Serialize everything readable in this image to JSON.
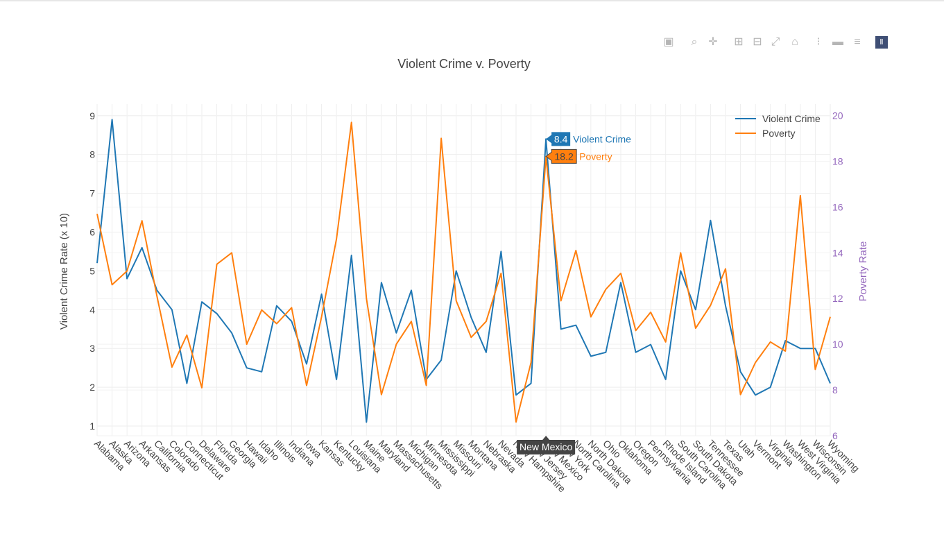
{
  "modebar": {
    "buttons": [
      "camera-icon",
      "zoom-icon",
      "pan-icon",
      "zoom-in-icon",
      "zoom-out-icon",
      "autoscale-icon",
      "reset-axes-icon",
      "spike-lines-icon",
      "hover-closest-icon",
      "hover-compare-icon",
      "plotly-logo-icon"
    ]
  },
  "colors": {
    "violent": "#1f77b4",
    "poverty": "#ff7f0e",
    "y2axis": "#9467bd",
    "text": "#444444"
  },
  "hover": {
    "x_label": "New Mexico",
    "violent_value": "8.4",
    "violent_name": "Violent Crime",
    "poverty_value": "18.2",
    "poverty_name": "Poverty"
  },
  "chart_data": {
    "type": "line",
    "title": "Violent Crime v. Poverty",
    "xlabel": "",
    "ylabel": "Violent Crime Rate (x 10)",
    "y2label": "Poverty Rate",
    "ylim": [
      0.75,
      9.3
    ],
    "y2lim": [
      6,
      20.5
    ],
    "yticks": [
      1,
      2,
      3,
      4,
      5,
      6,
      7,
      8,
      9
    ],
    "y2ticks": [
      6,
      8,
      10,
      12,
      14,
      16,
      18,
      20
    ],
    "legend": "top-right",
    "categories": [
      "Alabama",
      "Alaska",
      "Arizona",
      "Arkansas",
      "California",
      "Colorado",
      "Connecticut",
      "Delaware",
      "Florida",
      "Georgia",
      "Hawaii",
      "Idaho",
      "Illinois",
      "Indiana",
      "Iowa",
      "Kansas",
      "Kentucky",
      "Louisiana",
      "Maine",
      "Maryland",
      "Massachusetts",
      "Michigan",
      "Minnesota",
      "Mississippi",
      "Missouri",
      "Montana",
      "Nebraska",
      "Nevada",
      "New Hampshire",
      "New Jersey",
      "New Mexico",
      "New York",
      "North Carolina",
      "North Dakota",
      "Ohio",
      "Oklahoma",
      "Oregon",
      "Pennsylvania",
      "Rhode Island",
      "South Carolina",
      "South Dakota",
      "Tennessee",
      "Texas",
      "Utah",
      "Vermont",
      "Virginia",
      "Washington",
      "West Virginia",
      "Wisconsin",
      "Wyoming"
    ],
    "series": [
      {
        "name": "Violent Crime",
        "axis": "y",
        "values": [
          5.2,
          8.9,
          4.8,
          5.6,
          4.5,
          4.0,
          2.1,
          4.2,
          3.9,
          3.4,
          2.5,
          2.4,
          4.1,
          3.7,
          2.6,
          4.4,
          2.2,
          5.4,
          1.1,
          4.7,
          3.4,
          4.5,
          2.2,
          2.7,
          5.0,
          3.8,
          2.9,
          5.5,
          1.8,
          2.1,
          8.4,
          3.5,
          3.6,
          2.8,
          2.9,
          4.7,
          2.9,
          3.1,
          2.2,
          5.0,
          4.0,
          6.3,
          4.1,
          2.4,
          1.8,
          2.0,
          3.2,
          3.0,
          3.0,
          2.1
        ]
      },
      {
        "name": "Poverty",
        "axis": "y2",
        "values": [
          15.7,
          12.6,
          13.2,
          15.4,
          12.1,
          9.0,
          10.4,
          8.1,
          13.5,
          14.0,
          10.0,
          11.5,
          10.9,
          11.6,
          8.2,
          11.2,
          14.6,
          19.7,
          12.0,
          7.8,
          10.0,
          11.0,
          8.2,
          19.0,
          11.9,
          10.3,
          11.0,
          13.1,
          6.6,
          9.2,
          18.2,
          11.9,
          14.1,
          11.2,
          12.4,
          13.1,
          10.6,
          11.4,
          10.1,
          14.0,
          10.7,
          11.7,
          13.3,
          7.8,
          9.2,
          10.1,
          9.7,
          16.5,
          8.9,
          11.2
        ]
      }
    ]
  }
}
